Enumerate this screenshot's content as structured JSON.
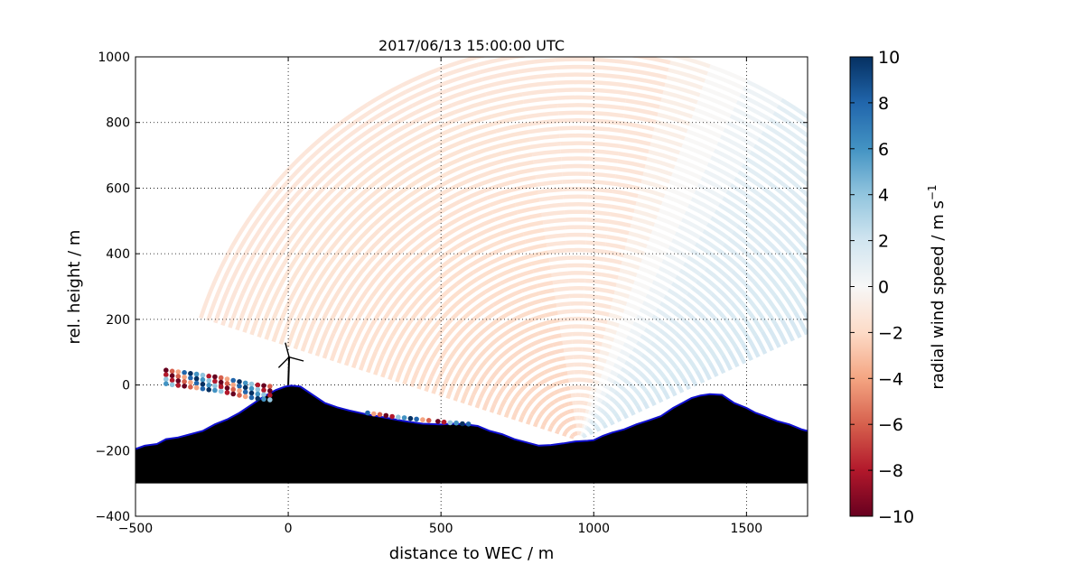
{
  "chart_data": {
    "type": "scatter",
    "title": "2017/06/13 15:00:00 UTC",
    "xlabel": "distance to WEC / m",
    "ylabel": "rel. height / m",
    "xlim": [
      -500,
      1700
    ],
    "ylim": [
      -400,
      1000
    ],
    "x_ticks": [
      -500,
      0,
      500,
      1000,
      1500
    ],
    "y_ticks": [
      -400,
      -200,
      0,
      200,
      400,
      600,
      800,
      1000
    ],
    "grid": true,
    "grid_style": "dotted",
    "colorbar": {
      "label": "radial wind speed / m s",
      "label_superscript": "−1",
      "min": -10,
      "max": 10,
      "ticks": [
        -10,
        -8,
        -6,
        -4,
        -2,
        0,
        2,
        4,
        6,
        8,
        10
      ],
      "colormap": "RdBu"
    },
    "radar_scan": {
      "origin": [
        950,
        -170
      ],
      "azimuth_range_deg": [
        25,
        162
      ],
      "range_m": [
        25,
        1300
      ],
      "approx_radial_speed_ms": {
        "near_left": -2.5,
        "far_left": -1.5,
        "middle": -1,
        "right": 1.5
      }
    },
    "terrain_profile": {
      "x": [
        -500,
        -470,
        -430,
        -400,
        -360,
        -320,
        -280,
        -240,
        -200,
        -160,
        -120,
        -80,
        -40,
        -10,
        10,
        40,
        80,
        120,
        160,
        200,
        260,
        320,
        380,
        440,
        500,
        540,
        580,
        620,
        660,
        700,
        740,
        780,
        820,
        860,
        900,
        940,
        980,
        1000,
        1030,
        1060,
        1100,
        1140,
        1180,
        1220,
        1260,
        1290,
        1320,
        1350,
        1380,
        1420,
        1460,
        1500,
        1530,
        1560,
        1600,
        1640,
        1680,
        1700
      ],
      "y": [
        -195,
        -185,
        -180,
        -165,
        -160,
        -150,
        -140,
        -120,
        -105,
        -85,
        -60,
        -35,
        -15,
        -5,
        -2,
        -5,
        -30,
        -55,
        -68,
        -78,
        -90,
        -100,
        -110,
        -118,
        -120,
        -118,
        -120,
        -125,
        -140,
        -150,
        -165,
        -175,
        -185,
        -183,
        -178,
        -172,
        -170,
        -168,
        -155,
        -145,
        -135,
        -120,
        -108,
        -95,
        -70,
        -55,
        -40,
        -32,
        -28,
        -30,
        -55,
        -70,
        -85,
        -95,
        -110,
        -120,
        -135,
        -140
      ],
      "baseline": -300
    },
    "wec": {
      "x": 0,
      "hub_height_m": 85,
      "rotor_radius_m": 38
    },
    "near_ground_points": {
      "left_clusters": [
        [
          -400,
          45
        ],
        [
          -380,
          42
        ],
        [
          -360,
          40
        ],
        [
          -340,
          38
        ],
        [
          -320,
          35
        ],
        [
          -300,
          33
        ],
        [
          -280,
          30
        ],
        [
          -260,
          27
        ],
        [
          -240,
          25
        ],
        [
          -220,
          22
        ],
        [
          -200,
          18
        ],
        [
          -180,
          14
        ],
        [
          -160,
          10
        ],
        [
          -140,
          6
        ],
        [
          -120,
          3
        ],
        [
          -100,
          0
        ],
        [
          -80,
          -2
        ],
        [
          -60,
          -4
        ]
      ],
      "right_points": [
        [
          260,
          -85
        ],
        [
          280,
          -88
        ],
        [
          300,
          -90
        ],
        [
          320,
          -93
        ],
        [
          340,
          -96
        ],
        [
          360,
          -98
        ],
        [
          380,
          -100
        ],
        [
          400,
          -102
        ],
        [
          420,
          -104
        ],
        [
          440,
          -106
        ],
        [
          460,
          -108
        ],
        [
          490,
          -111
        ],
        [
          510,
          -113
        ],
        [
          530,
          -115
        ],
        [
          550,
          -116
        ],
        [
          570,
          -118
        ],
        [
          590,
          -119
        ]
      ]
    }
  }
}
